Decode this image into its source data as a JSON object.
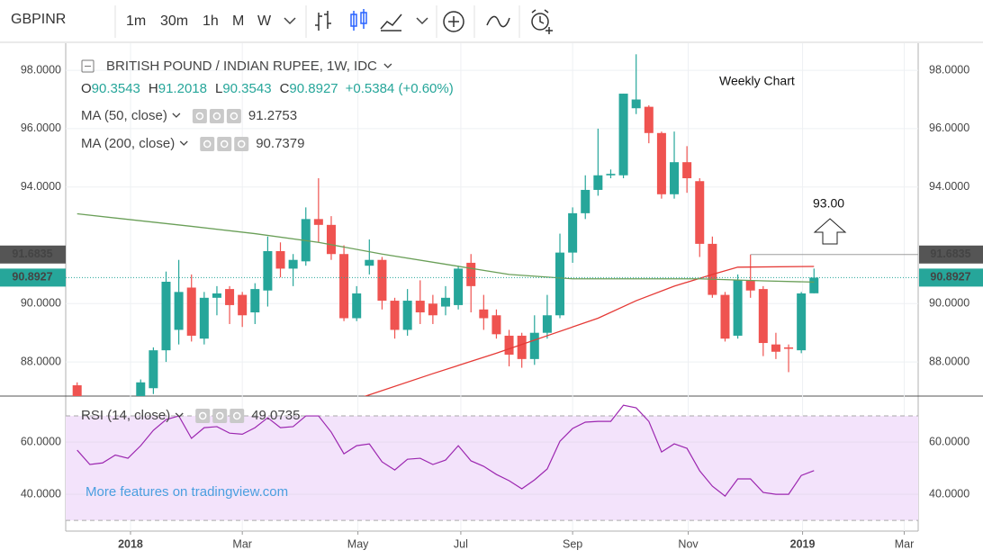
{
  "toolbar": {
    "symbol": "GBPINR",
    "intervals": [
      "1m",
      "30m",
      "1h",
      "M",
      "W"
    ],
    "active_interval": 4
  },
  "chart_data": [
    {
      "type": "candlestick",
      "title": "BRITISH POUND / INDIAN RUPEE, 1W, IDC",
      "ohlc_labels": [
        "O",
        "H",
        "L",
        "C"
      ],
      "change": "+0.5384 (+0.60%)",
      "annotations": [
        "Weekly Chart",
        "93.00"
      ],
      "x": [
        -4,
        1,
        2,
        3,
        4,
        5,
        6,
        7,
        8,
        9,
        10,
        11,
        12,
        13,
        14,
        15,
        16,
        17,
        18,
        19,
        20,
        21,
        22,
        23,
        24,
        25,
        26,
        27,
        28,
        29,
        30,
        31,
        32,
        33,
        34,
        35,
        36,
        37,
        38,
        39,
        40,
        41,
        42,
        43,
        44,
        45,
        46,
        47,
        48,
        49,
        50,
        51,
        52,
        53,
        54
      ],
      "open": [
        87.2,
        86.6,
        87.1,
        88.4,
        89.1,
        90.55,
        88.8,
        90.2,
        90.5,
        90.3,
        89.7,
        90.45,
        91.8,
        91.2,
        91.45,
        92.9,
        92.7,
        91.7,
        89.5,
        91.3,
        91.5,
        90.1,
        89.1,
        90.1,
        90.0,
        89.9,
        89.95,
        91.4,
        89.8,
        89.6,
        88.9,
        88.9,
        88.1,
        89.0,
        89.6,
        91.75,
        93.1,
        93.9,
        94.4,
        94.4,
        96.7,
        96.75,
        95.85,
        93.75,
        94.85,
        94.2,
        92.05,
        90.3,
        88.9,
        90.8,
        90.5,
        88.6,
        88.5,
        88.4,
        90.3543
      ],
      "high": [
        87.3,
        87.4,
        88.5,
        91.1,
        91.5,
        91.0,
        90.4,
        90.6,
        90.6,
        90.4,
        90.7,
        92.3,
        92.1,
        91.7,
        93.3,
        94.3,
        93.0,
        92.0,
        90.6,
        92.2,
        91.6,
        90.2,
        90.5,
        90.8,
        90.3,
        90.6,
        91.3,
        91.7,
        90.3,
        89.8,
        89.1,
        89.0,
        89.6,
        90.3,
        92.4,
        93.3,
        94.4,
        96.0,
        94.6,
        97.2,
        98.55,
        96.8,
        95.9,
        95.9,
        95.4,
        94.3,
        92.3,
        90.4,
        91.0,
        91.6835,
        90.6,
        89.0,
        88.6,
        90.4,
        91.2018
      ],
      "low": [
        86.5,
        86.4,
        86.9,
        88.0,
        88.6,
        88.7,
        88.6,
        89.6,
        89.3,
        89.2,
        89.3,
        89.9,
        90.9,
        90.6,
        91.3,
        92.1,
        91.5,
        89.4,
        89.4,
        91.0,
        89.8,
        88.8,
        88.9,
        89.3,
        89.3,
        89.6,
        89.8,
        89.7,
        89.1,
        88.8,
        87.85,
        87.8,
        87.9,
        88.8,
        89.5,
        91.4,
        92.9,
        93.7,
        94.3,
        94.3,
        96.5,
        95.5,
        93.6,
        93.6,
        93.8,
        91.6,
        90.2,
        88.7,
        88.8,
        90.2,
        88.2,
        88.1,
        87.65,
        88.3,
        90.3543
      ],
      "close": [
        86.6,
        87.3,
        88.4,
        90.75,
        90.4,
        88.9,
        90.2,
        90.35,
        89.95,
        89.6,
        90.5,
        91.8,
        91.2,
        91.5,
        92.9,
        92.7,
        91.7,
        89.5,
        90.35,
        91.5,
        90.1,
        89.1,
        90.1,
        89.7,
        89.6,
        90.2,
        91.2,
        90.6,
        89.5,
        88.95,
        88.25,
        88.1,
        89.0,
        89.6,
        91.75,
        93.1,
        93.9,
        94.4,
        94.45,
        97.2,
        97.0,
        95.85,
        93.75,
        94.85,
        94.3,
        92.05,
        90.3,
        88.8,
        90.8,
        90.45,
        88.65,
        88.35,
        88.45,
        90.35,
        90.8927
      ],
      "up_color": "#26a69a",
      "down_color": "#ef5350",
      "xlim": [
        -4.9,
        62.2
      ],
      "xticks": [
        {
          "value": 0.2,
          "label": "2018"
        },
        {
          "value": 9.0,
          "label": "Mar"
        },
        {
          "value": 18.1,
          "label": "May"
        },
        {
          "value": 26.2,
          "label": "Jul"
        },
        {
          "value": 35.0,
          "label": "Sep"
        },
        {
          "value": 44.1,
          "label": "Nov"
        },
        {
          "value": 53.1,
          "label": "2019"
        },
        {
          "value": 61.1,
          "label": "Mar"
        }
      ],
      "ylim": [
        86.83,
        98.93
      ],
      "yticks": [
        {
          "value": 88,
          "label": "88.0000"
        },
        {
          "value": 90,
          "label": "90.0000"
        },
        {
          "value": 94,
          "label": "94.0000"
        },
        {
          "value": 96,
          "label": "96.0000"
        },
        {
          "value": 98,
          "label": "98.0000"
        }
      ],
      "grid": true,
      "indicators": [
        {
          "name": "MA (50, close)",
          "color": "#e53935",
          "x": [
            18.5,
            24,
            29,
            33,
            37,
            40,
            43,
            46,
            48,
            54
          ],
          "values": [
            86.8,
            87.6,
            88.3,
            88.9,
            89.5,
            90.1,
            90.6,
            91.0,
            91.25,
            91.2753
          ]
        },
        {
          "name": "MA (200, close)",
          "color": "#6a9f58",
          "x": [
            -4,
            5,
            10,
            15,
            20,
            25,
            30,
            35,
            40,
            45,
            50,
            54
          ],
          "values": [
            93.08,
            92.65,
            92.4,
            92.1,
            91.7,
            91.35,
            91.0,
            90.85,
            90.85,
            90.85,
            90.78,
            90.7379
          ]
        }
      ]
    },
    {
      "type": "line",
      "name": "RSI (14, close)",
      "color": "#9c27b0",
      "band": [
        30,
        70
      ],
      "band_color": "#f3e3fb",
      "watermark": "More features on tradingview.com",
      "x": [
        -4,
        -3,
        -2,
        -1,
        0,
        1,
        2,
        3,
        4,
        5,
        6,
        7,
        8,
        9,
        10,
        11,
        12,
        13,
        14,
        15,
        16,
        17,
        18,
        19,
        20,
        21,
        22,
        23,
        24,
        25,
        26,
        27,
        28,
        29,
        30,
        31,
        32,
        33,
        34,
        35,
        36,
        37,
        38,
        39,
        40,
        41,
        42,
        43,
        44,
        45,
        46,
        47,
        48,
        49,
        50,
        51,
        52,
        53,
        54
      ],
      "values": [
        56.9,
        51.4,
        52,
        55,
        53.8,
        58.6,
        64.5,
        68.6,
        70,
        61.4,
        65.5,
        65.9,
        63.4,
        63,
        65.5,
        69.3,
        65.5,
        65.9,
        70,
        70,
        63.8,
        55.5,
        58.6,
        59.3,
        52.4,
        49.3,
        53.4,
        53.8,
        51.4,
        53.1,
        58.6,
        52.8,
        50.7,
        47.6,
        45.2,
        42.1,
        45.5,
        49.7,
        60.3,
        65.2,
        67.6,
        67.9,
        67.9,
        74.1,
        73.1,
        67.9,
        56.2,
        59.3,
        57.6,
        49,
        43.1,
        39.3,
        45.9,
        45.9,
        40.7,
        40,
        40,
        47.2,
        49.0735
      ],
      "ylim": [
        25.9,
        77.6
      ],
      "yticks": [
        {
          "value": 40,
          "label": "40.0000"
        },
        {
          "value": 60,
          "label": "60.0000"
        }
      ]
    }
  ]
}
